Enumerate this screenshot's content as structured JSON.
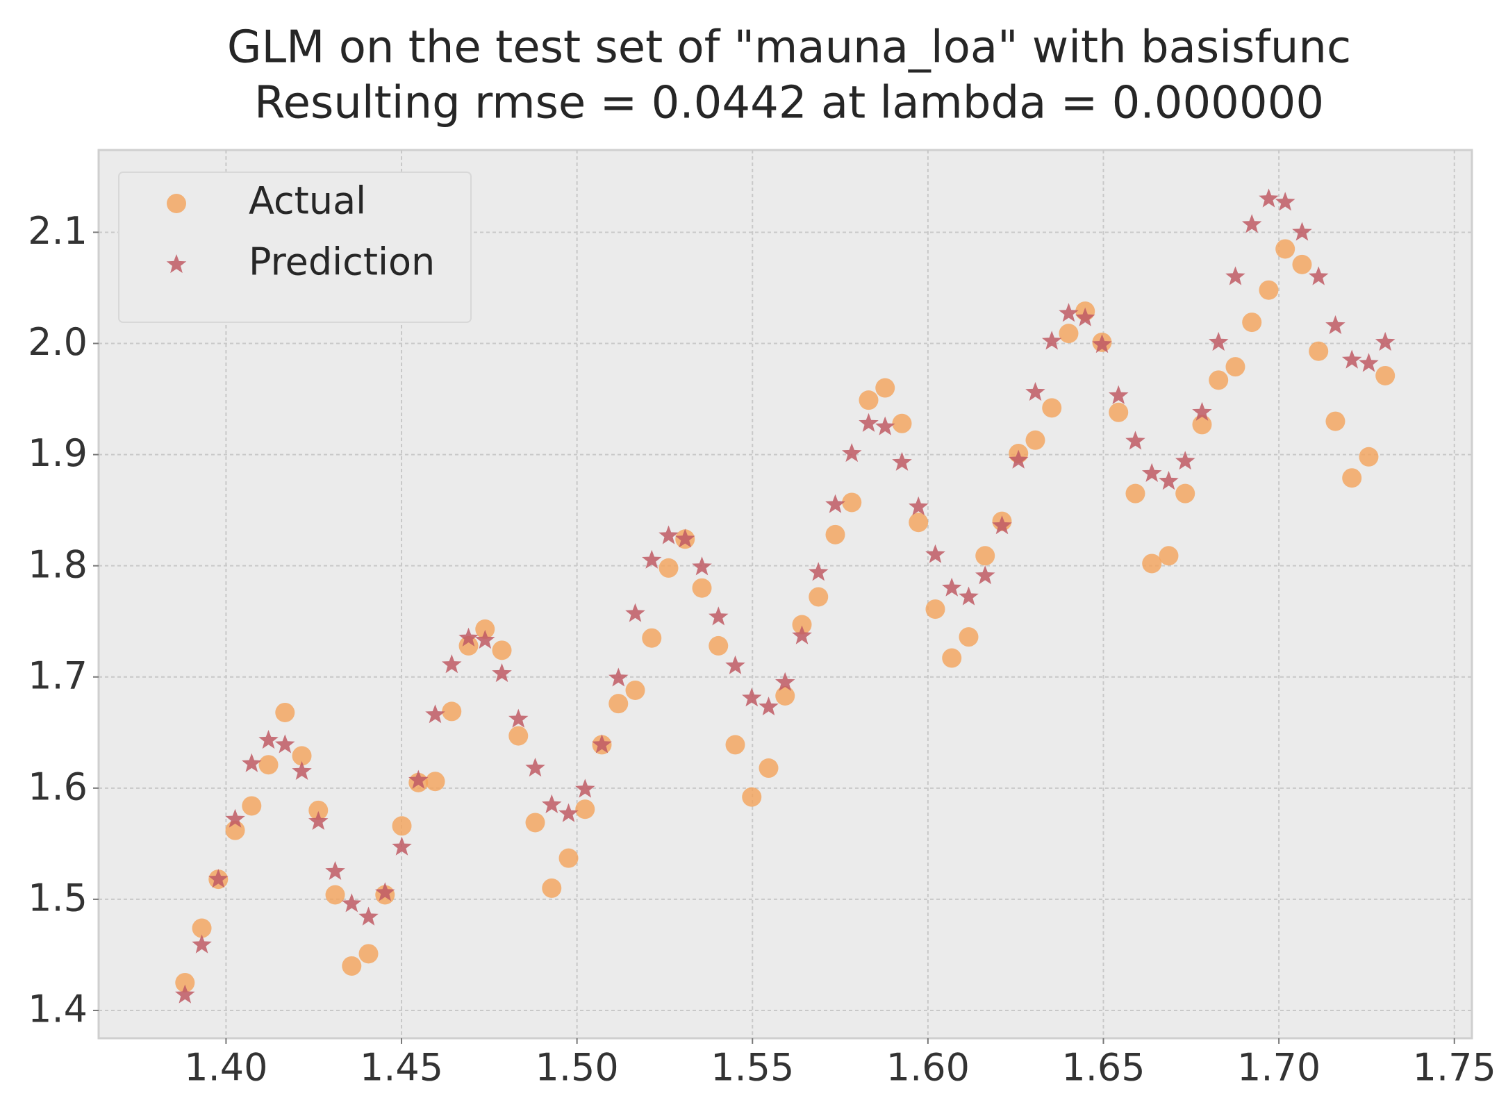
{
  "chart_data": {
    "type": "scatter",
    "title": "GLM on the test set of \"mauna_loa\" with basisfunc",
    "subtitle": "Resulting rmse = 0.0442 at lambda = 0.000000",
    "x": [
      1.3883,
      1.3931,
      1.3978,
      1.4026,
      1.4073,
      1.4121,
      1.4168,
      1.4216,
      1.4263,
      1.4311,
      1.4358,
      1.4406,
      1.4453,
      1.4501,
      1.4548,
      1.4596,
      1.4643,
      1.4691,
      1.4738,
      1.4786,
      1.4833,
      1.4881,
      1.4928,
      1.4976,
      1.5023,
      1.5071,
      1.5118,
      1.5166,
      1.5213,
      1.5261,
      1.5308,
      1.5356,
      1.5403,
      1.5451,
      1.5498,
      1.5546,
      1.5593,
      1.5641,
      1.5688,
      1.5736,
      1.5783,
      1.5831,
      1.5878,
      1.5926,
      1.5973,
      1.6021,
      1.6068,
      1.6116,
      1.6163,
      1.6211,
      1.6258,
      1.6306,
      1.6353,
      1.6401,
      1.6448,
      1.6496,
      1.6543,
      1.6591,
      1.6638,
      1.6686,
      1.6733,
      1.6781,
      1.6828,
      1.6876,
      1.6923,
      1.6971,
      1.7018,
      1.7066,
      1.7113,
      1.7161,
      1.7208,
      1.7256,
      1.7303
    ],
    "series": [
      {
        "name": "Actual",
        "color": "#f4a35a",
        "marker": "circle",
        "values": [
          1.425,
          1.474,
          1.518,
          1.562,
          1.584,
          1.621,
          1.668,
          1.629,
          1.58,
          1.504,
          1.44,
          1.451,
          1.504,
          1.566,
          1.605,
          1.606,
          1.669,
          1.728,
          1.743,
          1.724,
          1.647,
          1.569,
          1.51,
          1.537,
          1.581,
          1.639,
          1.676,
          1.688,
          1.735,
          1.798,
          1.824,
          1.78,
          1.728,
          1.639,
          1.592,
          1.618,
          1.683,
          1.747,
          1.772,
          1.828,
          1.857,
          1.949,
          1.96,
          1.928,
          1.839,
          1.761,
          1.717,
          1.736,
          1.809,
          1.84,
          1.901,
          1.913,
          1.942,
          2.009,
          2.029,
          2.001,
          1.938,
          1.865,
          1.802,
          1.809,
          1.865,
          1.927,
          1.967,
          1.979,
          2.019,
          2.048,
          2.085,
          2.071,
          1.993,
          1.93,
          1.879,
          1.898,
          1.971
        ]
      },
      {
        "name": "Prediction",
        "color": "#bf5a64",
        "marker": "star",
        "values": [
          1.414,
          1.459,
          1.518,
          1.572,
          1.622,
          1.643,
          1.639,
          1.615,
          1.57,
          1.525,
          1.496,
          1.484,
          1.506,
          1.547,
          1.607,
          1.666,
          1.711,
          1.735,
          1.733,
          1.703,
          1.662,
          1.618,
          1.585,
          1.577,
          1.599,
          1.639,
          1.699,
          1.757,
          1.805,
          1.827,
          1.824,
          1.799,
          1.754,
          1.71,
          1.681,
          1.673,
          1.695,
          1.737,
          1.794,
          1.855,
          1.901,
          1.928,
          1.925,
          1.893,
          1.853,
          1.81,
          1.78,
          1.772,
          1.791,
          1.836,
          1.895,
          1.956,
          2.002,
          2.027,
          2.023,
          1.999,
          1.953,
          1.912,
          1.883,
          1.876,
          1.894,
          1.938,
          2.001,
          2.06,
          2.107,
          2.13,
          2.127,
          2.1,
          2.06,
          2.016,
          1.985,
          1.982,
          2.001
        ]
      }
    ],
    "xlim": [
      1.3637,
      1.755
    ],
    "ylim": [
      1.375,
      2.174
    ],
    "xticks": [
      {
        "value": 1.4,
        "label": "1.40"
      },
      {
        "value": 1.45,
        "label": "1.45"
      },
      {
        "value": 1.5,
        "label": "1.50"
      },
      {
        "value": 1.55,
        "label": "1.55"
      },
      {
        "value": 1.6,
        "label": "1.60"
      },
      {
        "value": 1.65,
        "label": "1.65"
      },
      {
        "value": 1.7,
        "label": "1.70"
      },
      {
        "value": 1.75,
        "label": "1.75"
      }
    ],
    "yticks": [
      1.4,
      1.5,
      1.6,
      1.7,
      1.8,
      1.9,
      {
        "value": 2.0,
        "label": "2.0"
      },
      2.1
    ],
    "grid": true,
    "legend": "upper-left"
  }
}
